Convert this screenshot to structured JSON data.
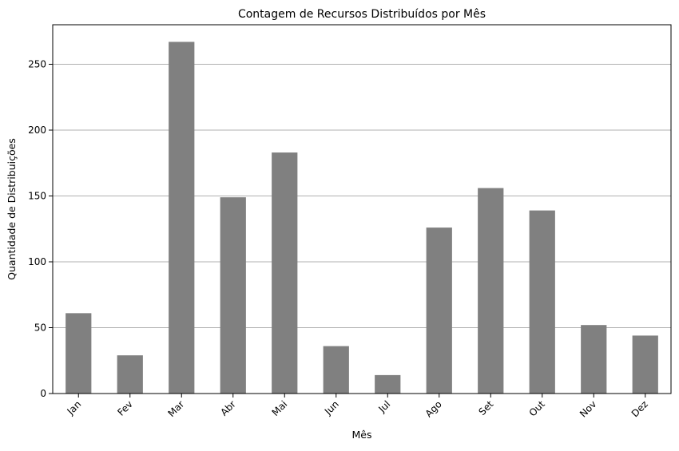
{
  "chart_data": {
    "type": "bar",
    "title": "Contagem de Recursos Distribuídos por Mês",
    "xlabel": "Mês",
    "ylabel": "Quantidade de Distribuições",
    "categories": [
      "Jan",
      "Fev",
      "Mar",
      "Abr",
      "Mai",
      "Jun",
      "Jul",
      "Ago",
      "Set",
      "Out",
      "Nov",
      "Dez"
    ],
    "values": [
      61,
      29,
      267,
      149,
      183,
      36,
      14,
      126,
      156,
      139,
      52,
      44
    ],
    "ylim": [
      0,
      280
    ],
    "yticks": [
      0,
      50,
      100,
      150,
      200,
      250
    ],
    "grid": "y-axis",
    "bar_color": "#808080",
    "grid_color": "#b0b0b0",
    "xtick_rotation_deg": 45
  }
}
